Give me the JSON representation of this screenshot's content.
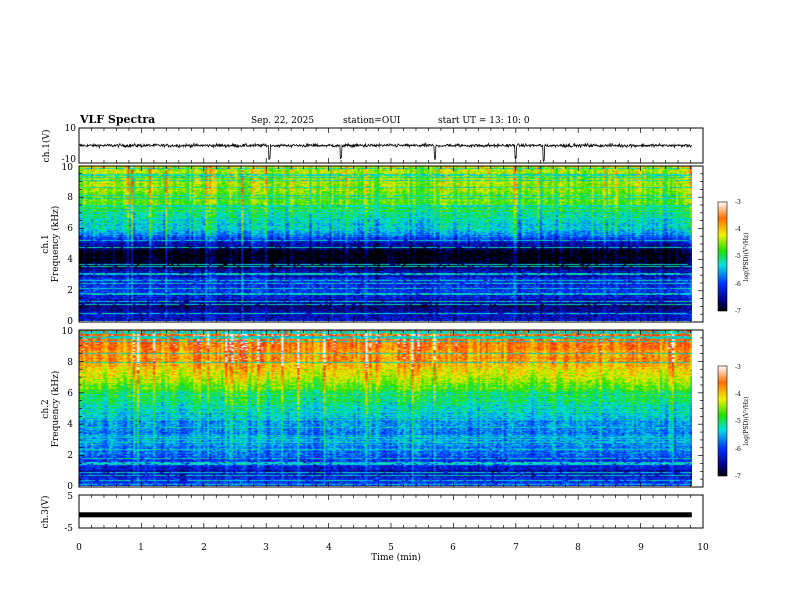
{
  "header": {
    "title": "VLF Spectra",
    "date": "Sep. 22, 2025",
    "station": "station=OUI",
    "start": "start  UT =   13: 10: 0"
  },
  "chart_data": [
    {
      "type": "line",
      "name": "ch1-waveform",
      "ylabel": "ch.1(V)",
      "ylim": [
        -10,
        10
      ],
      "yticks": [
        -10,
        10
      ],
      "xlim": [
        0,
        10
      ],
      "description_values": {
        "baseline": 0,
        "typical_amplitude": 1.5,
        "spike_times_min": [
          3.05,
          4.2,
          5.7,
          7.0,
          7.45
        ]
      }
    },
    {
      "type": "heatmap",
      "name": "ch1-spectrogram",
      "ylabel_top": "ch.1",
      "ylabel": "Frequency (kHz)",
      "ylim": [
        0,
        10
      ],
      "yticks": [
        0,
        2,
        4,
        6,
        8,
        10
      ],
      "xlim": [
        0,
        9.8
      ],
      "colorbar": {
        "label": "log(PSD)(V²/Hz)",
        "ticks": [
          -3,
          -4,
          -5,
          -6,
          -7
        ],
        "range": [
          -7,
          -3
        ]
      },
      "profile_khz_logpsd": [
        [
          0,
          -6.2
        ],
        [
          1,
          -6.6
        ],
        [
          2,
          -6.0
        ],
        [
          3,
          -6.3
        ],
        [
          3.5,
          -6.8
        ],
        [
          4,
          -7.0
        ],
        [
          4.5,
          -6.9
        ],
        [
          5,
          -6.4
        ],
        [
          5.5,
          -5.7
        ],
        [
          6,
          -5.4
        ],
        [
          7,
          -5.0
        ],
        [
          8,
          -4.6
        ],
        [
          9,
          -4.4
        ],
        [
          10,
          -4.3
        ]
      ]
    },
    {
      "type": "heatmap",
      "name": "ch2-spectrogram",
      "ylabel_top": "ch.2",
      "ylabel": "Frequency (kHz)",
      "ylim": [
        0,
        10
      ],
      "yticks": [
        0,
        2,
        4,
        6,
        8,
        10
      ],
      "xlim": [
        0,
        9.8
      ],
      "colorbar": {
        "label": "log(PSD)(V²/Hz)",
        "ticks": [
          -3,
          -4,
          -5,
          -6,
          -7
        ],
        "range": [
          -7,
          -3
        ]
      },
      "profile_khz_logpsd": [
        [
          0,
          -6.0
        ],
        [
          1,
          -6.4
        ],
        [
          2,
          -5.8
        ],
        [
          3,
          -5.6
        ],
        [
          4,
          -5.6
        ],
        [
          5,
          -5.2
        ],
        [
          6,
          -4.9
        ],
        [
          7,
          -4.3
        ],
        [
          8,
          -3.8
        ],
        [
          9,
          -3.6
        ],
        [
          10,
          -3.5
        ]
      ]
    },
    {
      "type": "line",
      "name": "ch3-waveform",
      "ylabel": "ch.3(V)",
      "ylim": [
        -5,
        5
      ],
      "yticks": [
        -5,
        5
      ],
      "xlim": [
        0,
        10
      ],
      "level": -1
    }
  ],
  "x_axis": {
    "label": "Time (min)",
    "ticks": [
      "0",
      "1",
      "2",
      "3",
      "4",
      "5",
      "6",
      "7",
      "8",
      "9",
      "10"
    ],
    "range": [
      0,
      10
    ]
  },
  "colors": {
    "frame": "#000000",
    "ch3_line": "#000000"
  }
}
